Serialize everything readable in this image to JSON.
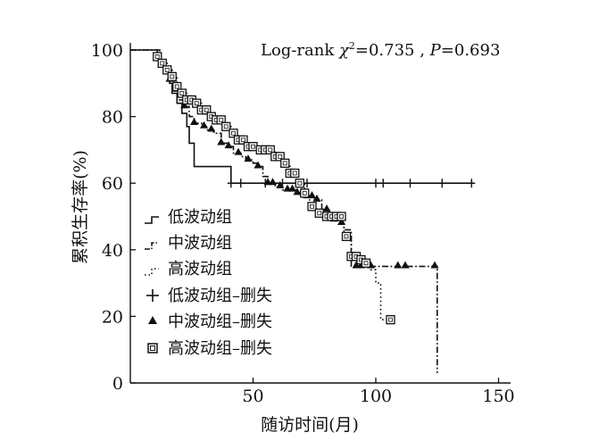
{
  "chart_data": {
    "type": "line",
    "subtype": "kaplan-meier",
    "title": "",
    "xlabel": "随访时间(月)",
    "ylabel": "累积生存率(%)",
    "xlim": [
      0,
      155
    ],
    "ylim": [
      0,
      100
    ],
    "xticks": [
      50,
      100,
      150
    ],
    "yticks": [
      0,
      20,
      40,
      60,
      80,
      100
    ],
    "annotation": {
      "prefix": "Log-rank ",
      "chi": "χ",
      "sup": "2",
      "stat": "=0.735 , ",
      "p": "P",
      "pval": "=0.693"
    },
    "legend_position": "bottom-left",
    "series": [
      {
        "name": "低波动组",
        "line_style": "solid",
        "censor_legend": "低波动组–删失",
        "censor_marker": "plus",
        "points": [
          [
            0,
            100
          ],
          [
            10,
            100
          ],
          [
            11,
            97
          ],
          [
            13,
            95
          ],
          [
            14,
            93
          ],
          [
            16,
            90
          ],
          [
            17,
            87
          ],
          [
            19,
            84
          ],
          [
            21,
            81
          ],
          [
            23,
            77
          ],
          [
            24,
            72
          ],
          [
            26,
            65
          ],
          [
            41,
            65
          ],
          [
            41,
            60
          ],
          [
            140,
            60
          ]
        ],
        "censored": [
          41,
          45,
          55,
          62,
          72,
          100,
          103,
          114,
          127,
          139
        ]
      },
      {
        "name": "中波动组",
        "line_style": "dashdot",
        "censor_legend": "中波动组–删失",
        "censor_marker": "triangle",
        "points": [
          [
            0,
            100
          ],
          [
            10,
            100
          ],
          [
            12,
            97
          ],
          [
            14,
            94
          ],
          [
            16,
            91
          ],
          [
            18,
            88
          ],
          [
            20,
            85
          ],
          [
            22,
            83
          ],
          [
            24,
            80
          ],
          [
            26,
            78
          ],
          [
            29,
            77
          ],
          [
            31,
            76
          ],
          [
            34,
            75
          ],
          [
            37,
            72
          ],
          [
            40,
            71
          ],
          [
            42,
            69
          ],
          [
            45,
            68
          ],
          [
            47,
            67
          ],
          [
            50,
            66
          ],
          [
            52,
            65
          ],
          [
            54,
            62
          ],
          [
            56,
            60
          ],
          [
            59,
            59
          ],
          [
            62,
            58
          ],
          [
            66,
            58
          ],
          [
            68,
            57
          ],
          [
            72,
            56
          ],
          [
            75,
            55
          ],
          [
            78,
            52
          ],
          [
            81,
            50
          ],
          [
            83,
            49
          ],
          [
            85,
            48
          ],
          [
            87,
            46
          ],
          [
            90,
            35
          ],
          [
            125,
            35
          ],
          [
            125,
            3
          ]
        ],
        "censored": [
          16,
          19,
          22,
          26,
          30,
          33,
          37,
          40,
          44,
          48,
          52,
          56,
          58,
          61,
          64,
          66,
          68,
          70,
          72,
          74,
          76,
          80,
          83,
          86,
          92,
          94,
          98,
          109,
          112,
          124
        ]
      },
      {
        "name": "高波动组",
        "line_style": "dotted",
        "censor_legend": "高波动组–删失",
        "censor_marker": "square",
        "points": [
          [
            0,
            100
          ],
          [
            10,
            100
          ],
          [
            11,
            98
          ],
          [
            13,
            96
          ],
          [
            15,
            94
          ],
          [
            17,
            92
          ],
          [
            19,
            89
          ],
          [
            21,
            87
          ],
          [
            23,
            85
          ],
          [
            26,
            84
          ],
          [
            29,
            82
          ],
          [
            32,
            80
          ],
          [
            35,
            79
          ],
          [
            38,
            77
          ],
          [
            41,
            75
          ],
          [
            44,
            73
          ],
          [
            47,
            71
          ],
          [
            51,
            70
          ],
          [
            56,
            70
          ],
          [
            59,
            68
          ],
          [
            62,
            66
          ],
          [
            65,
            63
          ],
          [
            68,
            60
          ],
          [
            71,
            57
          ],
          [
            73,
            53
          ],
          [
            76,
            51
          ],
          [
            79,
            50
          ],
          [
            85,
            50
          ],
          [
            87,
            44
          ],
          [
            90,
            38
          ],
          [
            93,
            37
          ],
          [
            96,
            36
          ],
          [
            98,
            34
          ],
          [
            100,
            30
          ],
          [
            102,
            19
          ],
          [
            106,
            19
          ]
        ],
        "censored": [
          11,
          13,
          15,
          17,
          19,
          21,
          23,
          25,
          27,
          29,
          31,
          33,
          35,
          37,
          39,
          42,
          44,
          46,
          48,
          50,
          53,
          55,
          57,
          59,
          61,
          63,
          65,
          67,
          69,
          71,
          74,
          77,
          80,
          82,
          84,
          86,
          88,
          90,
          92,
          94,
          96,
          106
        ]
      }
    ]
  }
}
